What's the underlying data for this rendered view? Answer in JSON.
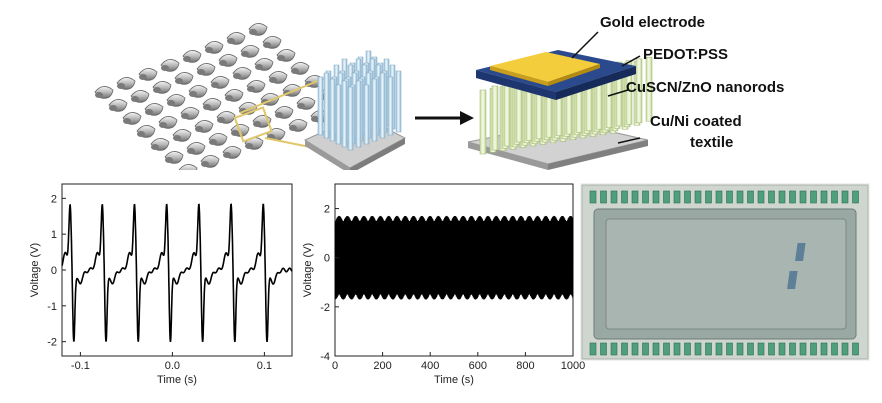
{
  "schematic": {
    "labels": {
      "gold": "Gold electrode",
      "pedot": "PEDOT:PSS",
      "nanorods": "CuSCN/ZnO nanorods",
      "textile_line1": "Cu/Ni coated",
      "textile_line2": "textile"
    }
  },
  "chart_data": [
    {
      "type": "line",
      "xlabel": "Time (s)",
      "ylabel": "Voltage (V)",
      "xlim": [
        -0.12,
        0.13
      ],
      "ylim": [
        -2.4,
        2.4
      ],
      "x_ticks": [
        "-0.1",
        "0.0",
        "0.1"
      ],
      "y_ticks": [
        "2",
        "1",
        "0",
        "-1",
        "-2"
      ],
      "series": [
        {
          "peaks_x": [
            -0.11,
            -0.075,
            -0.04,
            -0.005,
            0.03,
            0.065,
            0.1
          ],
          "positive_peak": 1.7,
          "negative_peak": -1.9
        }
      ],
      "grid": false
    },
    {
      "type": "area",
      "xlabel": "Time (s)",
      "ylabel": "Voltage (V)",
      "xlim": [
        0,
        1000
      ],
      "ylim": [
        -4,
        3
      ],
      "x_ticks": [
        "0",
        "200",
        "400",
        "600",
        "800",
        "1000"
      ],
      "y_ticks": [
        "2",
        "0",
        "-2",
        "-4"
      ],
      "series": [
        {
          "envelope_upper": 1.7,
          "envelope_lower": -1.7
        }
      ],
      "grid": false
    }
  ]
}
